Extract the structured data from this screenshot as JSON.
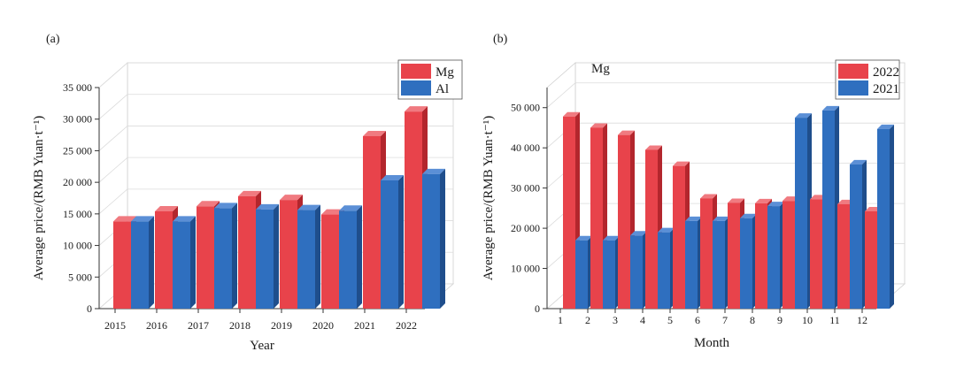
{
  "colors": {
    "series_red": "#e8434b",
    "series_red_dark": "#b3262d",
    "series_red_top": "#f07a80",
    "series_blue": "#2f6fbf",
    "series_blue_dark": "#1f4e8c",
    "series_blue_top": "#5b8fd6",
    "grid": "#dcdcdc",
    "axis": "#333333"
  },
  "chart_data": [
    {
      "type": "bar",
      "panel_label": "(a)",
      "title": "",
      "xlabel": "Year",
      "ylabel": "Average price/(RMB Yuan·t⁻¹)",
      "ylim": [
        0,
        35000
      ],
      "yticks": [
        "0",
        "5 000",
        "10 000",
        "15 000",
        "20 000",
        "25 000",
        "30 000",
        "35 000"
      ],
      "ytick_values": [
        0,
        5000,
        10000,
        15000,
        20000,
        25000,
        30000,
        35000
      ],
      "categories": [
        "2015",
        "2016",
        "2017",
        "2018",
        "2019",
        "2020",
        "2021",
        "2022"
      ],
      "series": [
        {
          "name": "Mg",
          "color": "#e8434b",
          "values": [
            13800,
            15400,
            16200,
            17800,
            17200,
            14900,
            27300,
            31200
          ]
        },
        {
          "name": "Al",
          "color": "#2f6fbf",
          "values": [
            13800,
            13800,
            15900,
            15700,
            15600,
            15500,
            20300,
            21300
          ]
        }
      ],
      "legend": [
        "Mg",
        "Al"
      ],
      "legend_position": "top-right",
      "annotation": ""
    },
    {
      "type": "bar",
      "panel_label": "(b)",
      "title": "",
      "xlabel": "Month",
      "ylabel": "Average price/(RMB Yuan·t⁻¹)",
      "ylim": [
        0,
        55000
      ],
      "yticks": [
        "0",
        "10 000",
        "20 000",
        "30 000",
        "40 000",
        "50 000"
      ],
      "ytick_values": [
        0,
        10000,
        20000,
        30000,
        40000,
        50000
      ],
      "categories": [
        "1",
        "2",
        "3",
        "4",
        "5",
        "6",
        "7",
        "8",
        "9",
        "10",
        "11",
        "12"
      ],
      "series": [
        {
          "name": "2022",
          "color": "#e8434b",
          "values": [
            47800,
            45000,
            43200,
            39500,
            35500,
            27400,
            26300,
            26200,
            26800,
            27200,
            26000,
            24200
          ]
        },
        {
          "name": "2021",
          "color": "#2f6fbf",
          "values": [
            17000,
            17000,
            18200,
            19000,
            21800,
            21800,
            22500,
            25500,
            47500,
            49300,
            35900,
            44700
          ]
        }
      ],
      "legend": [
        "2022",
        "2021"
      ],
      "legend_position": "top-right",
      "annotation": "Mg"
    }
  ]
}
